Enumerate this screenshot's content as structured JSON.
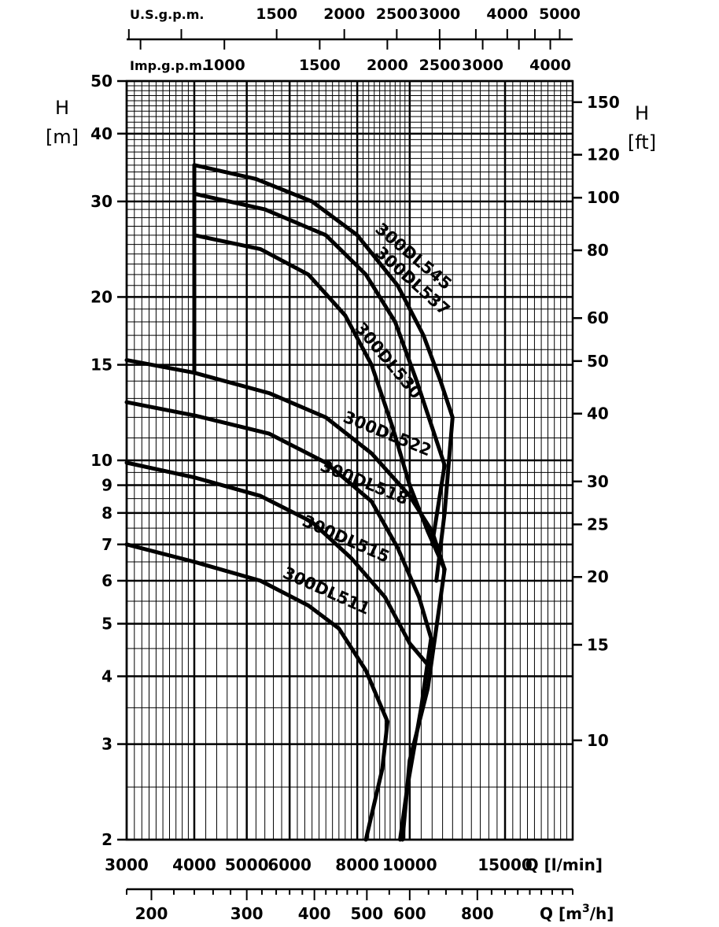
{
  "chart_data": {
    "type": "line",
    "title": "",
    "x_scale": "log",
    "y_scale": "log",
    "xlim": [
      3000,
      20000
    ],
    "ylim": [
      2,
      50
    ],
    "y_axis_left": {
      "title": "H",
      "unit": "[m]",
      "ticks": [
        2,
        3,
        4,
        5,
        6,
        7,
        8,
        9,
        10,
        15,
        20,
        30,
        40,
        50
      ]
    },
    "y_axis_right": {
      "title": "H",
      "unit": "[ft]",
      "ticks": [
        10,
        15,
        20,
        25,
        30,
        40,
        50,
        60,
        80,
        100,
        120,
        150
      ]
    },
    "x_axis_lmin": {
      "title": "Q [l/min]",
      "ticks": [
        3000,
        4000,
        5000,
        6000,
        8000,
        10000,
        15000
      ]
    },
    "x_axis_m3h": {
      "title": "Q [m",
      "title_sup": "3",
      "title_end": "/h]",
      "ticks": [
        200,
        300,
        400,
        500,
        600,
        800
      ]
    },
    "x_axis_usgpm": {
      "title": "U.S.g.p.m.",
      "ticks": [
        1500,
        2000,
        2500,
        3000,
        4000,
        5000
      ]
    },
    "x_axis_impgpm": {
      "title": "Imp.g.p.m.",
      "ticks": [
        1000,
        1500,
        2000,
        2500,
        3000,
        4000
      ]
    },
    "series": [
      {
        "name": "300DL545",
        "points": [
          [
            4000,
            35
          ],
          [
            5200,
            33
          ],
          [
            6600,
            30
          ],
          [
            8000,
            26
          ],
          [
            9500,
            21
          ],
          [
            10600,
            17
          ],
          [
            11400,
            14
          ],
          [
            12000,
            12
          ],
          [
            11600,
            8
          ],
          [
            11200,
            6
          ]
        ]
      },
      {
        "name": "300DL537",
        "points": [
          [
            4000,
            31
          ],
          [
            5400,
            29
          ],
          [
            7000,
            26
          ],
          [
            8300,
            22
          ],
          [
            9400,
            18
          ],
          [
            10300,
            14
          ],
          [
            11000,
            11.5
          ],
          [
            11600,
            9.8
          ],
          [
            11000,
            7
          ]
        ]
      },
      {
        "name": "300DL530",
        "points": [
          [
            4000,
            26
          ],
          [
            5300,
            24.5
          ],
          [
            6500,
            22
          ],
          [
            7600,
            18.5
          ],
          [
            8500,
            15
          ],
          [
            9300,
            11.5
          ],
          [
            10000,
            9
          ],
          [
            10800,
            7.4
          ],
          [
            11600,
            6.3
          ]
        ]
      },
      {
        "name": "300DL522",
        "points": [
          [
            3000,
            15.3
          ],
          [
            4000,
            14.5
          ],
          [
            5500,
            13.3
          ],
          [
            7000,
            12
          ],
          [
            8500,
            10.3
          ],
          [
            10000,
            8.6
          ],
          [
            11000,
            7.4
          ],
          [
            11600,
            6.3
          ],
          [
            10800,
            3.8
          ],
          [
            10000,
            2.8
          ],
          [
            9700,
            2
          ]
        ]
      },
      {
        "name": "300DL518",
        "points": [
          [
            3000,
            12.8
          ],
          [
            4000,
            12.1
          ],
          [
            5500,
            11.2
          ],
          [
            7000,
            9.9
          ],
          [
            8500,
            8.4
          ],
          [
            9500,
            6.9
          ],
          [
            10400,
            5.6
          ],
          [
            10950,
            4.7
          ],
          [
            10500,
            3.5
          ],
          [
            9900,
            2.5
          ],
          [
            9600,
            2
          ]
        ]
      },
      {
        "name": "300DL515",
        "points": [
          [
            3000,
            9.9
          ],
          [
            4000,
            9.3
          ],
          [
            5300,
            8.6
          ],
          [
            6600,
            7.7
          ],
          [
            7800,
            6.6
          ],
          [
            9000,
            5.6
          ],
          [
            10000,
            4.6
          ],
          [
            10800,
            4.2
          ]
        ]
      },
      {
        "name": "300DL511",
        "points": [
          [
            3000,
            7
          ],
          [
            4000,
            6.5
          ],
          [
            5300,
            6
          ],
          [
            6500,
            5.4
          ],
          [
            7400,
            4.9
          ],
          [
            8300,
            4.1
          ],
          [
            9100,
            3.3
          ],
          [
            8900,
            2.7
          ],
          [
            8300,
            2
          ]
        ]
      }
    ],
    "curve_labels": [
      {
        "text": "300DL545",
        "at": [
          8600,
          26.5
        ],
        "angle": 40
      },
      {
        "text": "300DL537",
        "at": [
          8600,
          24
        ],
        "angle": 42
      },
      {
        "text": "300DL530",
        "at": [
          7900,
          17.5
        ],
        "angle": 50
      },
      {
        "text": "300DL522",
        "at": [
          7500,
          11.8
        ],
        "angle": 22
      },
      {
        "text": "300DL518",
        "at": [
          6800,
          9.6
        ],
        "angle": 22
      },
      {
        "text": "300DL515",
        "at": [
          6300,
          7.6
        ],
        "angle": 24
      },
      {
        "text": "300DL511",
        "at": [
          5800,
          6.1
        ],
        "angle": 24
      }
    ],
    "grid": true,
    "legend": "none"
  }
}
